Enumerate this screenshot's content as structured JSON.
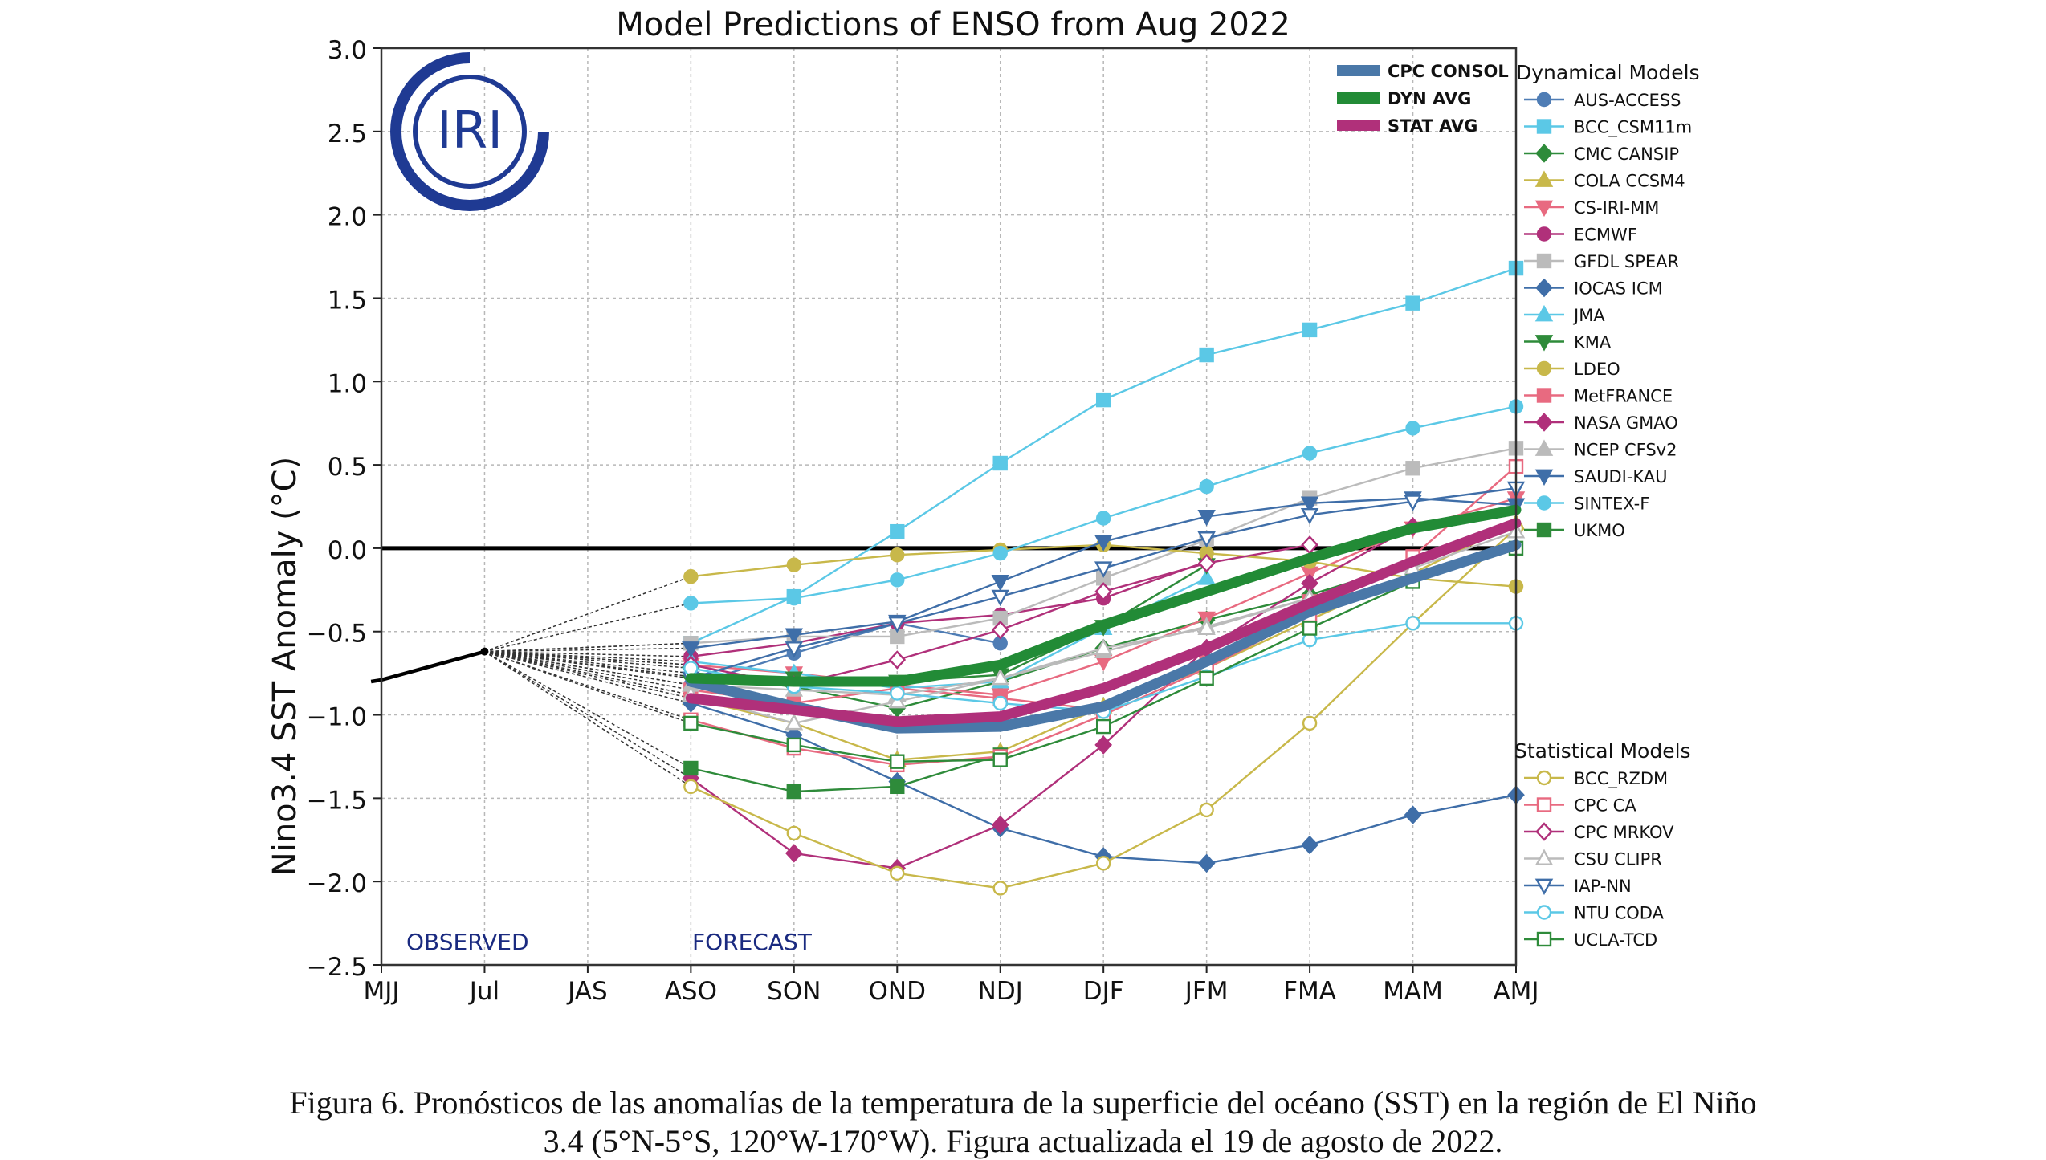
{
  "chart_data": {
    "type": "line",
    "title": "Model Predictions of ENSO from Aug 2022",
    "xlabel": "",
    "ylabel": "Nino3.4 SST Anomaly (°C)",
    "categories": [
      "MJJ",
      "Jul",
      "JAS",
      "ASO",
      "SON",
      "OND",
      "NDJ",
      "DJF",
      "JFM",
      "FMA",
      "MAM",
      "AMJ"
    ],
    "ylim": [
      -2.5,
      3.0
    ],
    "yticks": [
      "3.0",
      "2.5",
      "2.0",
      "1.5",
      "1.0",
      "0.5",
      "0.0",
      "−0.5",
      "−1.0",
      "−1.5",
      "−2.0",
      "−2.5"
    ],
    "grid": true,
    "observed": {
      "label": "OBSERVED",
      "x": [
        -0.1,
        0,
        1
      ],
      "values": [
        -0.8,
        -0.79,
        -0.62
      ]
    },
    "forecast_label": "FORECAST",
    "legend_averages": [
      {
        "name": "CPC CONSOL",
        "color": "#4a78a8",
        "values": [
          -0.8,
          -0.95,
          -1.08,
          -1.07,
          -0.95,
          -0.68,
          -0.38,
          -0.18,
          0.02
        ]
      },
      {
        "name": "DYN AVG",
        "color": "#228b36",
        "values": [
          -0.78,
          -0.8,
          -0.8,
          -0.7,
          -0.46,
          -0.26,
          -0.06,
          0.12,
          0.23
        ]
      },
      {
        "name": "STAT AVG",
        "color": "#b0307a",
        "values": [
          -0.9,
          -0.97,
          -1.04,
          -1.01,
          -0.84,
          -0.6,
          -0.33,
          -0.08,
          0.15
        ]
      }
    ],
    "dynamical_title": "Dynamical Models",
    "dynamical_models": [
      {
        "name": "AUS-ACCESS",
        "color": "#4f7db5",
        "marker": "circle",
        "fill": true,
        "values": [
          -0.82,
          -0.63,
          -0.45,
          -0.57
        ]
      },
      {
        "name": "BCC_CSM11m",
        "color": "#5bc8e6",
        "marker": "square",
        "fill": true,
        "values": [
          -0.57,
          -0.29,
          0.1,
          0.51,
          0.89,
          1.16,
          1.31,
          1.47,
          1.68
        ]
      },
      {
        "name": "CMC CANSIP",
        "color": "#2e8b3a",
        "marker": "diamond",
        "fill": true,
        "values": [
          -0.77,
          -0.83,
          -0.96,
          -0.8,
          -0.6,
          -0.43,
          -0.28,
          -0.09
        ]
      },
      {
        "name": "COLA CCSM4",
        "color": "#c8b84a",
        "marker": "triangle-up",
        "fill": true,
        "values": [
          -0.9,
          -1.05,
          -1.27,
          -1.22,
          -0.95,
          -0.72,
          -0.43,
          -0.15,
          0.15
        ]
      },
      {
        "name": "CS-IRI-MM",
        "color": "#e86a80",
        "marker": "triangle-down",
        "fill": true,
        "values": [
          -0.7,
          -0.75,
          -0.82,
          -0.88,
          -0.68,
          -0.42,
          -0.15,
          0.12,
          0.3
        ]
      },
      {
        "name": "ECMWF",
        "color": "#b0307a",
        "marker": "circle",
        "fill": true,
        "values": [
          -0.65,
          -0.57,
          -0.45,
          -0.4,
          -0.3,
          -0.08
        ]
      },
      {
        "name": "GFDL SPEAR",
        "color": "#bbbbbb",
        "marker": "square",
        "fill": true,
        "values": [
          -0.57,
          -0.53,
          -0.53,
          -0.42,
          -0.18,
          0.05,
          0.3,
          0.48,
          0.6
        ]
      },
      {
        "name": "IOCAS ICM",
        "color": "#3f6ea8",
        "marker": "diamond",
        "fill": true,
        "values": [
          -0.93,
          -1.12,
          -1.4,
          -1.68,
          -1.85,
          -1.89,
          -1.78,
          -1.6,
          -1.48
        ]
      },
      {
        "name": "JMA",
        "color": "#5bc8e6",
        "marker": "triangle-up",
        "fill": true,
        "values": [
          -0.68,
          -0.75,
          -0.84,
          -0.8,
          -0.48,
          -0.18
        ]
      },
      {
        "name": "KMA",
        "color": "#2e8b3a",
        "marker": "triangle-down",
        "fill": true,
        "values": [
          -0.75,
          -0.78,
          -0.8,
          -0.76,
          -0.47,
          -0.1
        ]
      },
      {
        "name": "LDEO",
        "color": "#c8b84a",
        "marker": "circle",
        "fill": true,
        "values": [
          -0.17,
          -0.1,
          -0.04,
          -0.01,
          0.02,
          -0.03,
          -0.08,
          -0.18,
          -0.23
        ]
      },
      {
        "name": "MetFRANCE",
        "color": "#e86a80",
        "marker": "square",
        "fill": true,
        "values": [
          -0.85,
          -0.93,
          -0.84,
          -0.9,
          -0.97,
          -0.68,
          -0.32
        ]
      },
      {
        "name": "NASA GMAO",
        "color": "#b0307a",
        "marker": "diamond",
        "fill": true,
        "values": [
          -1.38,
          -1.83,
          -1.92,
          -1.66,
          -1.18,
          -0.6,
          -0.21,
          0.13
        ]
      },
      {
        "name": "NCEP CFSv2",
        "color": "#bbbbbb",
        "marker": "triangle-up",
        "fill": true,
        "values": [
          -0.82,
          -0.85,
          -0.88,
          -0.78,
          -0.62,
          -0.47,
          -0.3
        ]
      },
      {
        "name": "SAUDI-KAU",
        "color": "#3f6ea8",
        "marker": "triangle-down",
        "fill": true,
        "values": [
          -0.6,
          -0.52,
          -0.44,
          -0.2,
          0.04,
          0.19,
          0.27,
          0.3,
          0.26
        ]
      },
      {
        "name": "SINTEX-F",
        "color": "#5bc8e6",
        "marker": "circle",
        "fill": true,
        "values": [
          -0.33,
          -0.3,
          -0.19,
          -0.03,
          0.18,
          0.37,
          0.57,
          0.72,
          0.85
        ]
      },
      {
        "name": "UKMO",
        "color": "#2e8b3a",
        "marker": "square",
        "fill": true,
        "values": [
          -1.32,
          -1.46,
          -1.43,
          -1.24
        ]
      }
    ],
    "statistical_title": "Statistical Models",
    "statistical_models": [
      {
        "name": "BCC_RZDM",
        "color": "#c8b84a",
        "marker": "circle",
        "fill": false,
        "values": [
          -1.43,
          -1.71,
          -1.95,
          -2.04,
          -1.89,
          -1.57,
          -1.05,
          -0.45,
          0.12
        ]
      },
      {
        "name": "CPC CA",
        "color": "#e86a80",
        "marker": "square",
        "fill": false,
        "values": [
          -1.03,
          -1.2,
          -1.3,
          -1.25,
          -1.0,
          -0.72,
          -0.4,
          -0.05,
          0.49
        ]
      },
      {
        "name": "CPC MRKOV",
        "color": "#b0307a",
        "marker": "diamond",
        "fill": false,
        "values": [
          -0.7,
          -0.82,
          -0.67,
          -0.49,
          -0.26,
          -0.09,
          0.02
        ]
      },
      {
        "name": "CSU CLIPR",
        "color": "#bbbbbb",
        "marker": "triangle-up",
        "fill": false,
        "values": [
          -0.88,
          -1.05,
          -0.92,
          -0.78,
          -0.6,
          -0.48,
          -0.3,
          -0.12,
          0.1
        ]
      },
      {
        "name": "IAP-NN",
        "color": "#3f6ea8",
        "marker": "triangle-down",
        "fill": false,
        "values": [
          -0.78,
          -0.6,
          -0.45,
          -0.29,
          -0.12,
          0.06,
          0.2,
          0.28,
          0.36
        ]
      },
      {
        "name": "NTU CODA",
        "color": "#5bc8e6",
        "marker": "circle",
        "fill": false,
        "values": [
          -0.72,
          -0.83,
          -0.87,
          -0.93,
          -0.98,
          -0.77,
          -0.55,
          -0.45,
          -0.45
        ]
      },
      {
        "name": "UCLA-TCD",
        "color": "#2e8b3a",
        "marker": "square",
        "fill": false,
        "values": [
          -1.05,
          -1.18,
          -1.28,
          -1.27,
          -1.07,
          -0.78,
          -0.48,
          -0.2,
          0.0
        ]
      }
    ]
  },
  "caption": {
    "line1": "Figura 6. Pronósticos de las anomalías de la temperatura de la superficie del océano (SST) en la región de El Niño",
    "line2": "3.4 (5°N-5°S, 120°W-170°W). Figura actualizada el 19 de agosto de 2022."
  },
  "logo": {
    "text": "IRI",
    "color": "#1f3a93"
  }
}
